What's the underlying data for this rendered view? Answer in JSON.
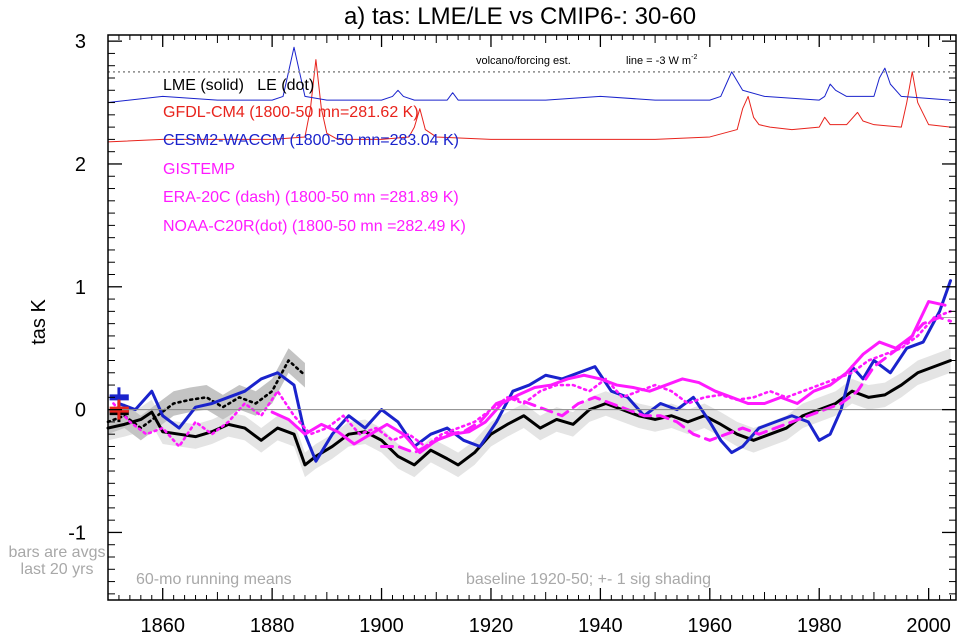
{
  "chart_data": {
    "type": "line",
    "title": "a) tas: LME/LE vs CMIP6-: 30-60",
    "ylabel": "tas K",
    "xlabel": "",
    "xlim": [
      1850,
      2005
    ],
    "ylim": [
      -1.55,
      3.05
    ],
    "x_ticks": [
      1860,
      1880,
      1900,
      1920,
      1940,
      1960,
      1980,
      2000
    ],
    "y_ticks": [
      -1,
      0,
      1,
      2,
      3
    ],
    "x_tick_labels": [
      "1860",
      "1880",
      "1900",
      "1920",
      "1940",
      "1960",
      "1980",
      "2000"
    ],
    "y_tick_labels": [
      "-1",
      "0",
      "1",
      "2",
      "3"
    ],
    "legend": [
      {
        "label": "LME (solid)   LE (dot)",
        "color": "#000000"
      },
      {
        "label": "GFDL-CM4 (1800-50 mn=281.62 K)",
        "color": "#e8231c"
      },
      {
        "label": "CESM2-WACCM (1800-50 mn=283.04 K)",
        "color": "#1a23cc"
      },
      {
        "label": "GISTEMP",
        "color": "#ff1aff"
      },
      {
        "label": "ERA-20C (dash) (1800-50 mn =281.89 K)",
        "color": "#ff1aff"
      },
      {
        "label": "NOAA-C20R(dot) (1800-50 mn =282.49 K)",
        "color": "#ff1aff"
      }
    ],
    "annotations": {
      "volcano": "volcano/forcing est.",
      "forcing_line": "line = -3 W m",
      "forcing_sup": "-2",
      "bars_note_1": "bars are avgs",
      "bars_note_2": "last 20 yrs",
      "running": "60-mo running means",
      "baseline": "baseline 1920-50; +- 1 sig shading"
    },
    "reference_lines": {
      "zero": 0,
      "forcing_dotted": 2.75,
      "right_tick": 0.75
    },
    "series": [
      {
        "name": "LME (solid)",
        "color": "#000000",
        "style": "solid",
        "x": [
          1850,
          1853,
          1856,
          1858,
          1860,
          1863,
          1866,
          1869,
          1872,
          1875,
          1878,
          1881,
          1884,
          1886,
          1888,
          1891,
          1894,
          1897,
          1900,
          1903,
          1906,
          1909,
          1912,
          1914,
          1917,
          1920,
          1923,
          1926,
          1929,
          1932,
          1935,
          1938,
          1941,
          1944,
          1947,
          1950,
          1953,
          1956,
          1959,
          1962,
          1965,
          1968,
          1971,
          1974,
          1977,
          1980,
          1983,
          1986,
          1989,
          1992,
          1995,
          1998,
          2001,
          2004
        ],
        "y": [
          -0.15,
          -0.12,
          -0.08,
          -0.02,
          -0.18,
          -0.2,
          -0.22,
          -0.18,
          -0.12,
          -0.15,
          -0.25,
          -0.15,
          -0.2,
          -0.45,
          -0.38,
          -0.3,
          -0.2,
          -0.18,
          -0.25,
          -0.38,
          -0.45,
          -0.33,
          -0.4,
          -0.45,
          -0.35,
          -0.2,
          -0.12,
          -0.05,
          -0.15,
          -0.08,
          -0.12,
          0,
          0.05,
          0,
          -0.05,
          -0.08,
          -0.05,
          -0.1,
          -0.05,
          -0.12,
          -0.2,
          -0.25,
          -0.2,
          -0.15,
          -0.05,
          0,
          0.05,
          0.15,
          0.1,
          0.12,
          0.2,
          0.3,
          0.35,
          0.4
        ]
      },
      {
        "name": "LE (dot)",
        "color": "#000000",
        "style": "dot",
        "x": [
          1850,
          1853,
          1856,
          1859,
          1862,
          1865,
          1868,
          1871,
          1874,
          1877,
          1880,
          1883,
          1886
        ],
        "y": [
          -0.1,
          -0.05,
          -0.15,
          -0.05,
          0.05,
          0.08,
          0.1,
          0.02,
          0.1,
          0.05,
          0.15,
          0.4,
          0.28
        ]
      },
      {
        "name": "CESM2-WACCM",
        "color": "#1a23cc",
        "style": "solid",
        "x": [
          1852,
          1855,
          1858,
          1860,
          1863,
          1866,
          1869,
          1872,
          1875,
          1878,
          1881,
          1884,
          1886,
          1888,
          1891,
          1894,
          1897,
          1900,
          1903,
          1906,
          1909,
          1912,
          1915,
          1918,
          1921,
          1924,
          1927,
          1930,
          1933,
          1936,
          1939,
          1942,
          1945,
          1948,
          1951,
          1954,
          1957,
          1960,
          1962,
          1964,
          1966,
          1969,
          1972,
          1975,
          1978,
          1980,
          1982,
          1984,
          1986,
          1988,
          1990,
          1993,
          1996,
          1999,
          2002,
          2004
        ],
        "y": [
          0.05,
          0,
          0.15,
          -0.05,
          -0.15,
          0.02,
          0.05,
          0.1,
          0.15,
          0.25,
          0.3,
          0.2,
          -0.2,
          -0.42,
          -0.2,
          -0.05,
          -0.15,
          0,
          -0.1,
          -0.3,
          -0.2,
          -0.15,
          -0.25,
          -0.3,
          -0.1,
          0.15,
          0.2,
          0.28,
          0.25,
          0.3,
          0.35,
          0.15,
          0.1,
          -0.05,
          0.05,
          0,
          0.1,
          -0.1,
          -0.25,
          -0.35,
          -0.3,
          -0.15,
          -0.1,
          -0.05,
          -0.1,
          -0.25,
          -0.2,
          0,
          0.35,
          0.25,
          0.4,
          0.3,
          0.5,
          0.55,
          0.8,
          1.05
        ]
      },
      {
        "name": "GISTEMP",
        "color": "#ff1aff",
        "style": "solid",
        "x": [
          1880,
          1883,
          1886,
          1889,
          1892,
          1895,
          1898,
          1901,
          1904,
          1907,
          1910,
          1913,
          1916,
          1919,
          1922,
          1925,
          1928,
          1931,
          1934,
          1937,
          1940,
          1943,
          1946,
          1949,
          1952,
          1955,
          1958,
          1961,
          1964,
          1967,
          1970,
          1973,
          1976,
          1979,
          1982,
          1985,
          1988,
          1991,
          1994,
          1997,
          2000,
          2003
        ],
        "y": [
          -0.02,
          -0.08,
          -0.2,
          -0.12,
          -0.18,
          -0.28,
          -0.2,
          -0.12,
          -0.2,
          -0.35,
          -0.25,
          -0.2,
          -0.18,
          -0.1,
          0.05,
          0.12,
          0.18,
          0.2,
          0.25,
          0.28,
          0.25,
          0.2,
          0.18,
          0.15,
          0.2,
          0.25,
          0.22,
          0.15,
          0.1,
          0.05,
          0.05,
          0.1,
          0.05,
          0.15,
          0.2,
          0.3,
          0.45,
          0.55,
          0.5,
          0.6,
          0.88,
          0.85
        ]
      },
      {
        "name": "ERA-20C (dash)",
        "color": "#ff1aff",
        "style": "dash",
        "x": [
          1900,
          1903,
          1906,
          1909,
          1912,
          1915,
          1918,
          1921,
          1924,
          1927,
          1930,
          1933,
          1936,
          1939,
          1942,
          1945,
          1948,
          1951,
          1954,
          1957,
          1960,
          1963,
          1966,
          1969,
          1972,
          1975,
          1978,
          1981,
          1984,
          1987,
          1990,
          1993,
          1996,
          1999,
          2002,
          2004
        ],
        "y": [
          -0.3,
          -0.3,
          -0.35,
          -0.28,
          -0.2,
          -0.18,
          -0.1,
          0.05,
          0.1,
          0.05,
          0,
          -0.05,
          0.05,
          0.1,
          0.05,
          0,
          -0.05,
          -0.05,
          -0.1,
          -0.2,
          -0.25,
          -0.2,
          -0.15,
          -0.2,
          -0.15,
          -0.1,
          -0.05,
          0,
          0.05,
          0.15,
          0.35,
          0.45,
          0.55,
          0.7,
          0.75,
          0.72
        ]
      },
      {
        "name": "NOAA-C20R(dot)",
        "color": "#ff1aff",
        "style": "dot",
        "x": [
          1851,
          1854,
          1857,
          1860,
          1863,
          1866,
          1869,
          1872,
          1875,
          1878,
          1881,
          1884,
          1887,
          1890,
          1893,
          1896,
          1899,
          1902,
          1905,
          1908,
          1911,
          1914,
          1917,
          1920,
          1923,
          1926,
          1929,
          1932,
          1935,
          1938,
          1941,
          1944,
          1947,
          1950,
          1953,
          1956,
          1959,
          1962,
          1965,
          1968,
          1971,
          1974,
          1977,
          1980,
          1983,
          1986,
          1989,
          1992,
          1995,
          1998,
          2001,
          2004
        ],
        "y": [
          0.05,
          -0.1,
          -0.2,
          -0.15,
          -0.3,
          -0.1,
          -0.2,
          -0.1,
          0.05,
          -0.05,
          0.15,
          -0.05,
          -0.2,
          -0.15,
          -0.05,
          -0.2,
          -0.15,
          -0.25,
          -0.2,
          -0.3,
          -0.2,
          -0.15,
          -0.1,
          0,
          0.1,
          0.05,
          0.15,
          0.2,
          0.2,
          0.15,
          0.25,
          0.1,
          0.15,
          0.2,
          0.15,
          0.05,
          0.1,
          0.12,
          0.08,
          0.1,
          0.15,
          0.1,
          0.15,
          0.2,
          0.25,
          0.3,
          0.4,
          0.45,
          0.5,
          0.6,
          0.75,
          0.8
        ]
      },
      {
        "name": "GFDL-CM4 forcing",
        "color": "#e8231c",
        "style": "solid",
        "x": [
          1850,
          1860,
          1870,
          1880,
          1886,
          1887,
          1888,
          1889,
          1890,
          1892,
          1900,
          1905,
          1906,
          1907,
          1908,
          1910,
          1920,
          1930,
          1940,
          1950,
          1960,
          1965,
          1966,
          1967,
          1968,
          1969,
          1971,
          1975,
          1980,
          1981,
          1982,
          1985,
          1987,
          1988,
          1990,
          1995,
          1996,
          1997,
          1998,
          2000,
          2004
        ],
        "y": [
          2.18,
          2.2,
          2.2,
          2.2,
          2.22,
          2.45,
          2.85,
          2.45,
          2.25,
          2.2,
          2.2,
          2.22,
          2.3,
          2.45,
          2.28,
          2.22,
          2.2,
          2.2,
          2.2,
          2.2,
          2.22,
          2.28,
          2.45,
          2.55,
          2.38,
          2.32,
          2.3,
          2.28,
          2.3,
          2.38,
          2.32,
          2.32,
          2.42,
          2.35,
          2.32,
          2.3,
          2.5,
          2.75,
          2.5,
          2.32,
          2.3
        ]
      },
      {
        "name": "CESM2-WACCM forcing",
        "color": "#1a23cc",
        "style": "solid",
        "x": [
          1850,
          1860,
          1870,
          1880,
          1882,
          1883,
          1884,
          1885,
          1886,
          1890,
          1900,
          1902,
          1903,
          1904,
          1906,
          1912,
          1913,
          1914,
          1920,
          1930,
          1940,
          1950,
          1960,
          1962,
          1963,
          1964,
          1966,
          1970,
          1980,
          1981,
          1982,
          1983,
          1985,
          1990,
          1991,
          1992,
          1993,
          1995,
          2004
        ],
        "y": [
          2.5,
          2.55,
          2.52,
          2.52,
          2.55,
          2.75,
          2.95,
          2.75,
          2.55,
          2.52,
          2.52,
          2.55,
          2.6,
          2.55,
          2.52,
          2.52,
          2.58,
          2.52,
          2.52,
          2.52,
          2.55,
          2.52,
          2.52,
          2.55,
          2.65,
          2.75,
          2.6,
          2.55,
          2.52,
          2.55,
          2.65,
          2.6,
          2.55,
          2.55,
          2.7,
          2.78,
          2.65,
          2.55,
          2.52
        ]
      }
    ],
    "bars": [
      {
        "name": "LME bar",
        "color": "#000000",
        "y": -0.02
      },
      {
        "name": "CESM2 bar",
        "color": "#1a23cc",
        "y": 0.1
      },
      {
        "name": "GFDL bar",
        "color": "#e8231c",
        "y": 0
      }
    ]
  }
}
